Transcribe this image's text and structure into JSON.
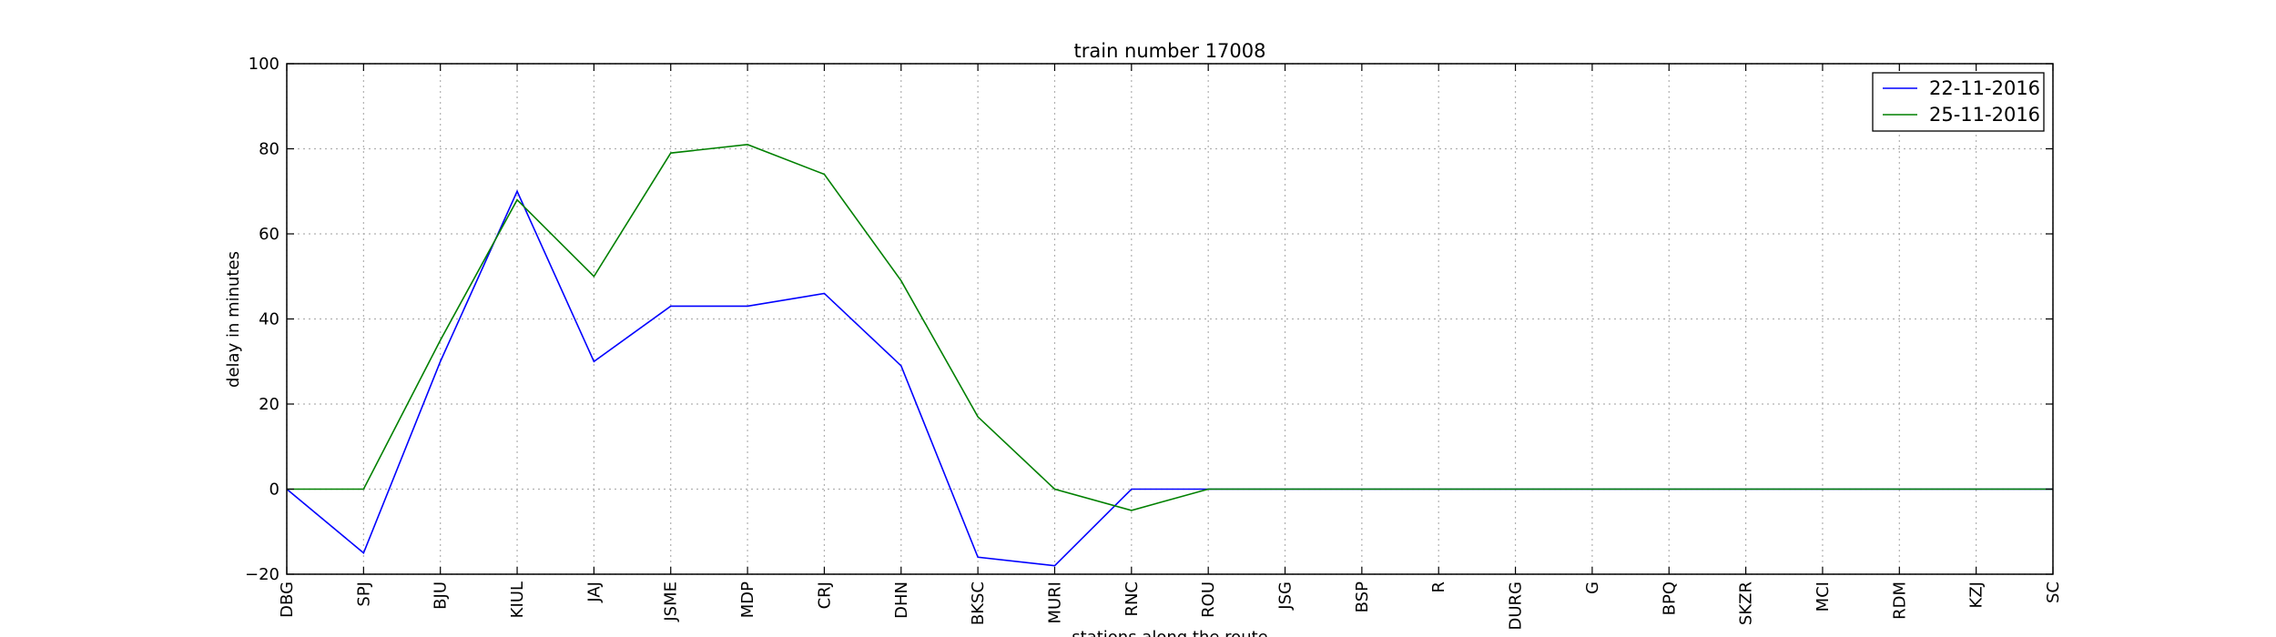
{
  "chart_data": {
    "type": "line",
    "title": "train number 17008",
    "xlabel": "stations along the route",
    "ylabel": "delay in minutes",
    "ylim": [
      -20,
      100
    ],
    "yticks": [
      -20,
      0,
      20,
      40,
      60,
      80,
      100
    ],
    "ytick_labels": [
      "−20",
      "0",
      "20",
      "40",
      "60",
      "80",
      "100"
    ],
    "grid": true,
    "legend_position": "top-right",
    "categories": [
      "DBG",
      "SPJ",
      "BJU",
      "KIUL",
      "JAJ",
      "JSME",
      "MDP",
      "CRJ",
      "DHN",
      "BKSC",
      "MURI",
      "RNC",
      "ROU",
      "JSG",
      "BSP",
      "R",
      "DURG",
      "G",
      "BPQ",
      "SKZR",
      "MCI",
      "RDM",
      "KZJ",
      "SC"
    ],
    "series": [
      {
        "name": "22-11-2016",
        "color": "#0000ff",
        "values": [
          0,
          -15,
          30,
          70,
          30,
          43,
          43,
          46,
          29,
          -16,
          -18,
          0,
          0,
          0,
          0,
          0,
          0,
          0,
          0,
          0,
          0,
          0,
          0,
          0
        ]
      },
      {
        "name": "25-11-2016",
        "color": "#008000",
        "values": [
          0,
          0,
          35,
          68,
          50,
          79,
          81,
          74,
          49,
          17,
          0,
          -5,
          0,
          0,
          0,
          0,
          0,
          0,
          0,
          0,
          0,
          0,
          0,
          0
        ]
      }
    ]
  }
}
